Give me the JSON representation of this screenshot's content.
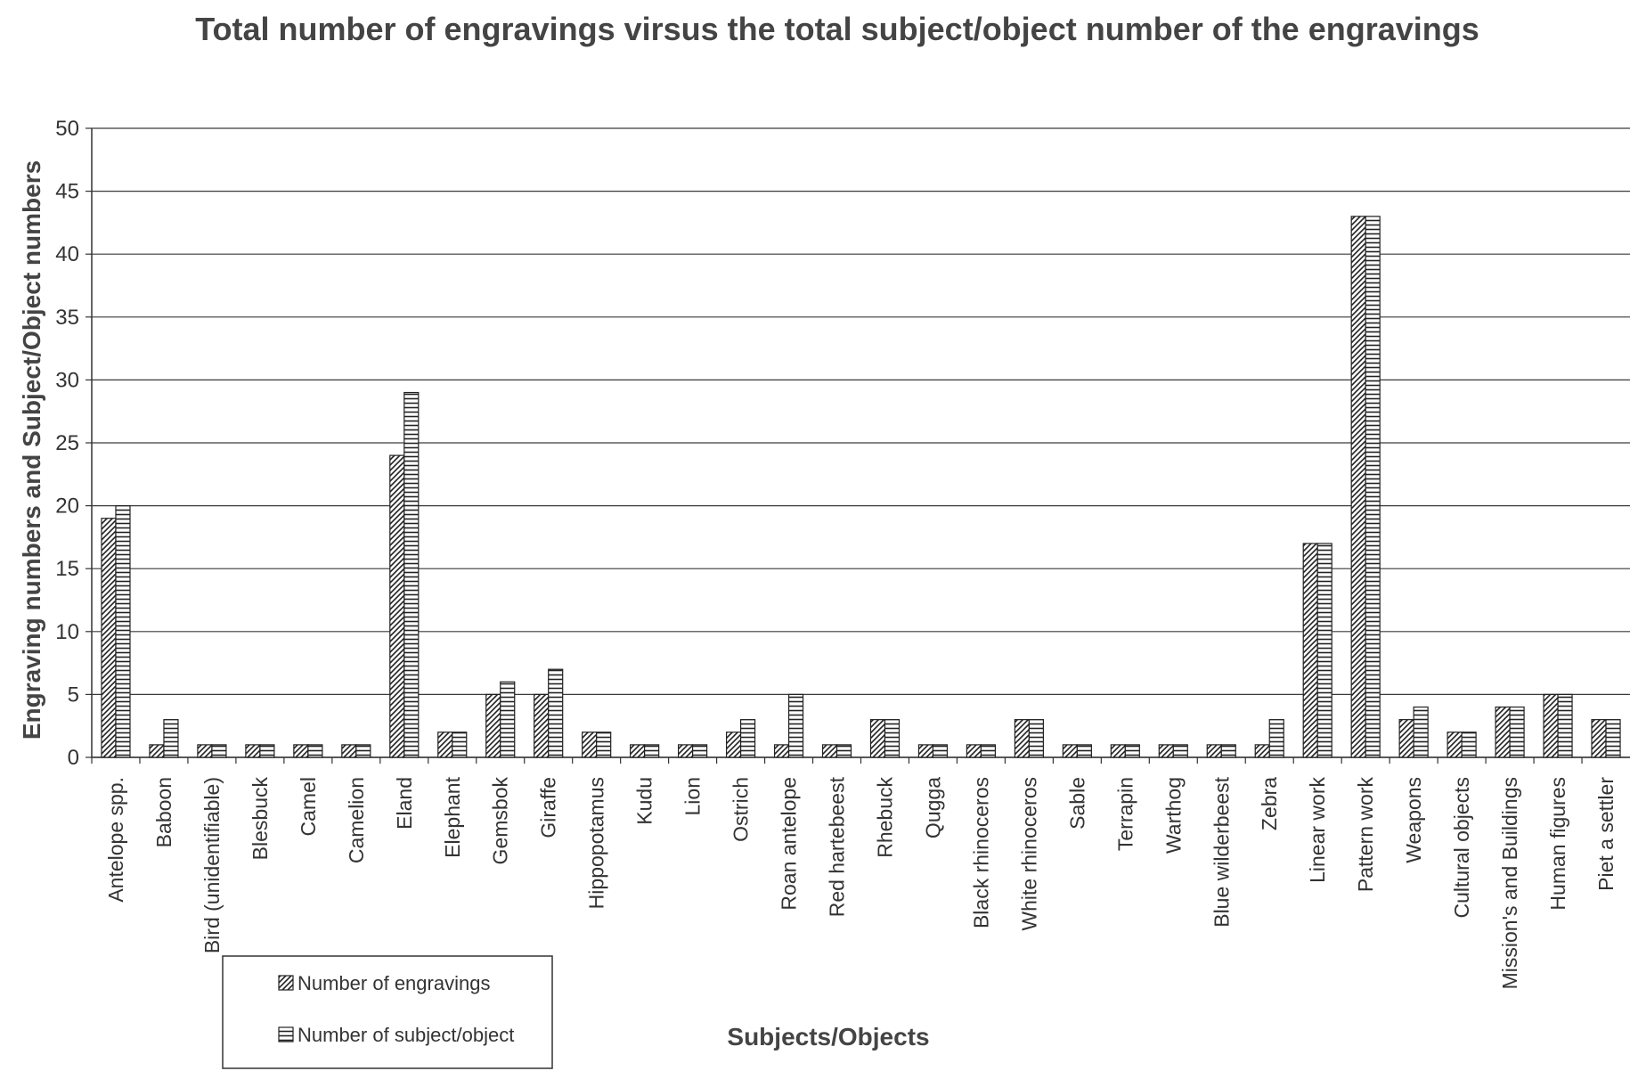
{
  "chart_data": {
    "type": "bar",
    "title": "Total number of engravings virsus the total subject/object number of the engravings",
    "xlabel": "Subjects/Objects",
    "ylabel": "Engraving numbers and Subject/Object numbers",
    "ylim": [
      0,
      50
    ],
    "yticks": [
      "0",
      "5",
      "10",
      "15",
      "20",
      "25",
      "30",
      "35",
      "40",
      "45",
      "50"
    ],
    "grid": "horizontal",
    "legend_position": "bottom-left",
    "categories": [
      "Antelope spp.",
      "Baboon",
      "Bird (unidentifiable)",
      "Blesbuck",
      "Camel",
      "Camelion",
      "Eland",
      "Elephant",
      "Gemsbok",
      "Giraffe",
      "Hippopotamus",
      "Kudu",
      "Lion",
      "Ostrich",
      "Roan antelope",
      "Red hartebeest",
      "Rhebuck",
      "Qugga",
      "Black rhinoceros",
      "White rhinoceros",
      "Sable",
      "Terrapin",
      "Warthog",
      "Blue wilderbeest",
      "Zebra",
      "Linear work",
      "Pattern work",
      "Weapons",
      "Cultural objects",
      "Mission's and Buildings",
      "Human figures",
      "Piet a settler"
    ],
    "series": [
      {
        "name": "Number of engravings",
        "pattern": "diagonal-hatch",
        "values": [
          19,
          1,
          1,
          1,
          1,
          1,
          24,
          2,
          5,
          5,
          2,
          1,
          1,
          2,
          1,
          1,
          3,
          1,
          1,
          3,
          1,
          1,
          1,
          1,
          1,
          17,
          43,
          3,
          2,
          4,
          5,
          3
        ]
      },
      {
        "name": "Number of subject/object",
        "pattern": "horizontal-hatch",
        "values": [
          20,
          3,
          1,
          1,
          1,
          1,
          29,
          2,
          6,
          7,
          2,
          1,
          1,
          3,
          5,
          1,
          3,
          1,
          1,
          3,
          1,
          1,
          1,
          1,
          3,
          17,
          43,
          4,
          2,
          4,
          5,
          3
        ]
      }
    ]
  }
}
